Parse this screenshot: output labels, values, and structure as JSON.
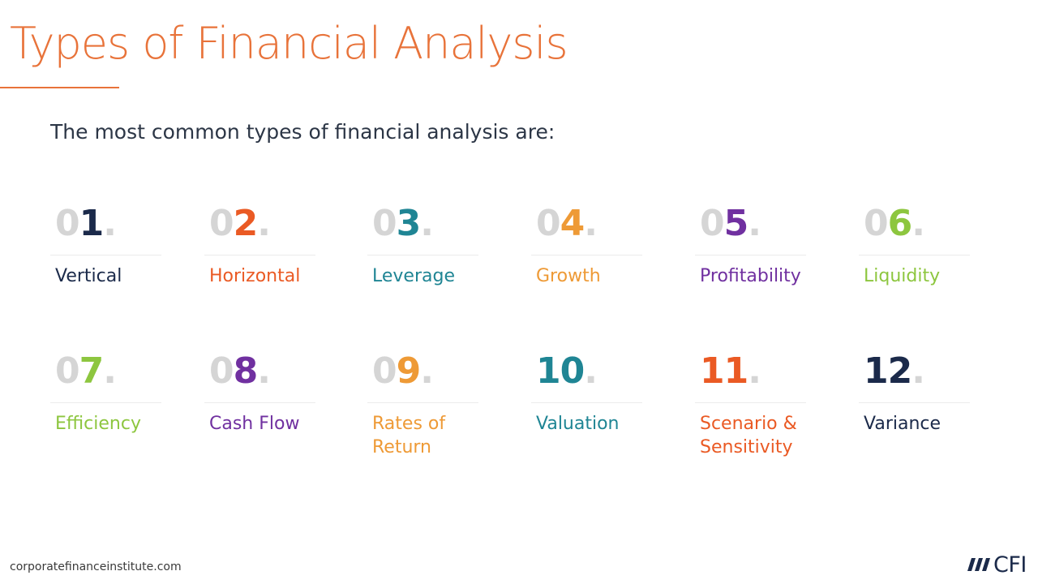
{
  "title": "Types of Financial Analysis",
  "subtitle": "The most common types of financial analysis are:",
  "items": [
    {
      "prefix": "0",
      "digit": "1",
      "dot": ".",
      "label": "Vertical",
      "label2": "",
      "color": "#1b2a4a"
    },
    {
      "prefix": "0",
      "digit": "2",
      "dot": ".",
      "label": "Horizontal",
      "label2": "",
      "color": "#ea5a24"
    },
    {
      "prefix": "0",
      "digit": "3",
      "dot": ".",
      "label": "Leverage",
      "label2": "",
      "color": "#1f8594"
    },
    {
      "prefix": "0",
      "digit": "4",
      "dot": ".",
      "label": "Growth",
      "label2": "",
      "color": "#ee9a36"
    },
    {
      "prefix": "0",
      "digit": "5",
      "dot": ".",
      "label": "Profitability",
      "label2": "",
      "color": "#7030a0"
    },
    {
      "prefix": "0",
      "digit": "6",
      "dot": ".",
      "label": "Liquidity",
      "label2": "",
      "color": "#8dc63f"
    },
    {
      "prefix": "0",
      "digit": "7",
      "dot": ".",
      "label": "Efficiency",
      "label2": "",
      "color": "#8dc63f"
    },
    {
      "prefix": "0",
      "digit": "8",
      "dot": ".",
      "label": "Cash Flow",
      "label2": "",
      "color": "#7030a0"
    },
    {
      "prefix": "0",
      "digit": "9",
      "dot": ".",
      "label": "Rates of",
      "label2": "Return",
      "color": "#ee9a36"
    },
    {
      "prefix": "",
      "digit": "10",
      "dot": ".",
      "label": "Valuation",
      "label2": "",
      "color": "#1f8594"
    },
    {
      "prefix": "",
      "digit": "11",
      "dot": ".",
      "label": "Scenario &",
      "label2": "Sensitivity",
      "color": "#ea5a24"
    },
    {
      "prefix": "",
      "digit": "12",
      "dot": ".",
      "label": "Variance",
      "label2": "",
      "color": "#1b2a4a"
    }
  ],
  "footer": {
    "url": "corporatefinanceinstitute.com",
    "logo_text": "CFI"
  },
  "colors": {
    "accent": "#e8733a",
    "gray_prefix": "#d5d5d5",
    "navy": "#1b2a4a"
  }
}
